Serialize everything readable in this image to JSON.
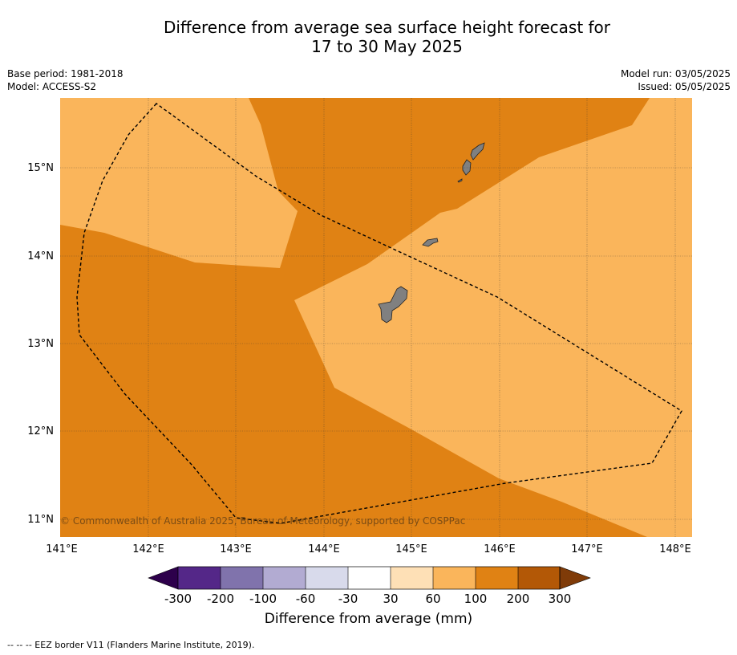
{
  "title": {
    "line1": "Difference from average sea surface height forecast for",
    "line2": "17 to 30 May 2025"
  },
  "meta": {
    "base_period": "Base period: 1981-2018",
    "model": "Model: ACCESS-S2",
    "model_run": "Model run: 03/05/2025",
    "issued": "Issued: 05/05/2025"
  },
  "map": {
    "lat_labels": [
      "15°N",
      "14°N",
      "13°N",
      "12°N",
      "11°N"
    ],
    "lon_labels": [
      "141°E",
      "142°E",
      "143°E",
      "144°E",
      "145°E",
      "146°E",
      "147°E",
      "148°E"
    ],
    "copyright": "© Commonwealth of Australia 2025, Bureau of Meteorology, supported by COSPPac",
    "fill_colors": {
      "range_100_200": "#e08214",
      "range_60_100": "#fab55b",
      "land": "#808080"
    }
  },
  "colorbar": {
    "tick_labels": [
      "-300",
      "-200",
      "-100",
      "-60",
      "-30",
      "30",
      "60",
      "100",
      "200",
      "300"
    ],
    "colors": [
      "#2d004b",
      "#542788",
      "#8073ac",
      "#b2abd2",
      "#d8daeb",
      "#ffffff",
      "#fee0b6",
      "#fab55b",
      "#e08214",
      "#b35806",
      "#7f3b08"
    ],
    "title": "Difference from average (mm)"
  },
  "footnote": "--  --  -- EEZ border V11 (Flanders Marine Institute, 2019)."
}
